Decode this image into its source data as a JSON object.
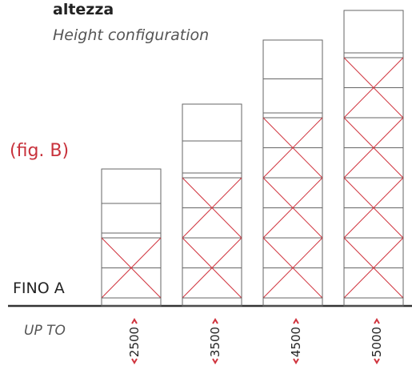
{
  "header": {
    "title": "altezza",
    "subtitle": "Height configuration"
  },
  "figure_label": "(fig. B)",
  "left_labels": {
    "it": "FINO A",
    "en": "UP TO"
  },
  "towers": [
    {
      "label": "2500"
    },
    {
      "label": "3500"
    },
    {
      "label": "4500"
    },
    {
      "label": "5000"
    }
  ]
}
